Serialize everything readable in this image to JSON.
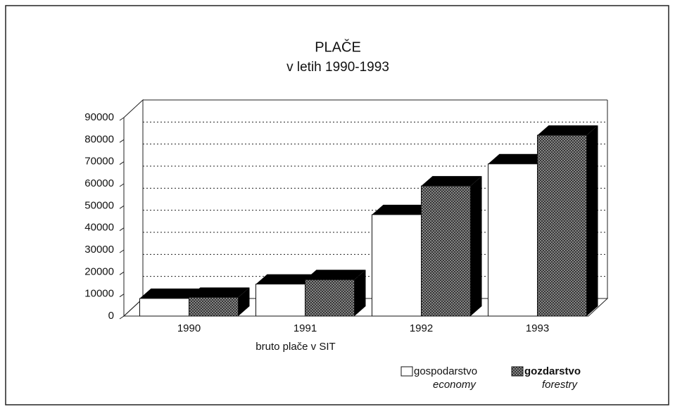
{
  "chart_data": {
    "type": "bar3d",
    "title": "PLAČE",
    "subtitle": "v letih 1990-1993",
    "x_label": "bruto plače v SIT",
    "categories": [
      "1990",
      "1991",
      "1992",
      "1993"
    ],
    "series": [
      {
        "name": "gospodarstvo",
        "name_en": "economy",
        "color": "#ffffff",
        "values": [
          8000,
          14500,
          46000,
          69000
        ]
      },
      {
        "name": "gozdarstvo",
        "name_en": "forestry",
        "color": "#9a9a9a",
        "values": [
          8500,
          16500,
          59000,
          82000
        ]
      }
    ],
    "ylim": [
      0,
      90000
    ],
    "yticks": [
      0,
      10000,
      20000,
      30000,
      40000,
      50000,
      60000,
      70000,
      80000,
      90000
    ],
    "grid": true
  }
}
